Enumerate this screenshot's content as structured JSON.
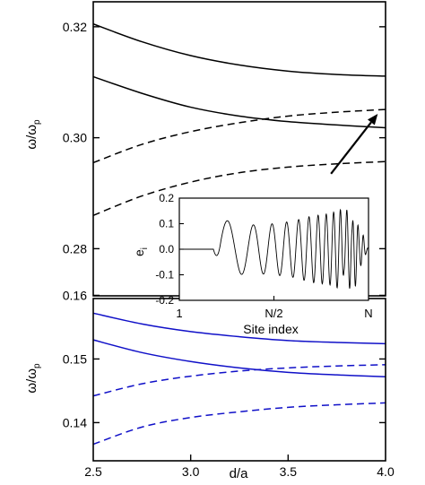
{
  "chart_data": [
    {
      "type": "line",
      "panel": "top",
      "ylabel": "ω/ω",
      "ylabel_sub": "p",
      "xlim": [
        2.5,
        4.0
      ],
      "ylim": [
        0.2715,
        0.3245
      ],
      "yticks": [
        0.28,
        0.3,
        0.32
      ],
      "ytick_labels": [
        "0.28",
        "0.30",
        "0.32"
      ],
      "color": "#000000",
      "series": [
        {
          "style": "solid",
          "x": [
            2.5,
            2.75,
            3.0,
            3.25,
            3.5,
            3.75,
            4.0
          ],
          "y": [
            0.3205,
            0.3173,
            0.3148,
            0.3131,
            0.312,
            0.3114,
            0.3111
          ]
        },
        {
          "style": "solid",
          "x": [
            2.5,
            2.75,
            3.0,
            3.25,
            3.5,
            3.75,
            4.0
          ],
          "y": [
            0.311,
            0.308,
            0.3055,
            0.3039,
            0.3029,
            0.3023,
            0.3018
          ]
        },
        {
          "style": "dashed",
          "x": [
            2.5,
            2.75,
            3.0,
            3.25,
            3.5,
            3.75,
            4.0
          ],
          "y": [
            0.2955,
            0.2988,
            0.3011,
            0.3027,
            0.3039,
            0.3046,
            0.3051
          ]
        },
        {
          "style": "dashed",
          "x": [
            2.5,
            2.75,
            3.0,
            3.25,
            3.5,
            3.75,
            4.0
          ],
          "y": [
            0.286,
            0.2895,
            0.292,
            0.2937,
            0.2947,
            0.2953,
            0.2957
          ]
        }
      ],
      "annotation": {
        "type": "arrow",
        "from": [
          3.72,
          0.2935
        ],
        "to": [
          3.96,
          0.3043
        ]
      }
    },
    {
      "type": "line",
      "panel": "bottom",
      "xlabel": "d/a",
      "ylabel": "ω/ω",
      "ylabel_sub": "p",
      "xlim": [
        2.5,
        4.0
      ],
      "ylim": [
        0.134,
        0.1595
      ],
      "xticks": [
        2.5,
        3.0,
        3.5,
        4.0
      ],
      "xtick_labels": [
        "2.5",
        "3.0",
        "3.5",
        "4.0"
      ],
      "yticks": [
        0.14,
        0.15,
        0.16
      ],
      "ytick_labels": [
        "0.14",
        "0.15",
        "0.16"
      ],
      "color": "#1010c8",
      "series": [
        {
          "style": "solid",
          "x": [
            2.5,
            2.75,
            3.0,
            3.25,
            3.5,
            3.75,
            4.0
          ],
          "y": [
            0.1572,
            0.1555,
            0.1543,
            0.1535,
            0.1529,
            0.1526,
            0.1524
          ]
        },
        {
          "style": "solid",
          "x": [
            2.5,
            2.75,
            3.0,
            3.25,
            3.5,
            3.75,
            4.0
          ],
          "y": [
            0.153,
            0.151,
            0.1496,
            0.1486,
            0.1479,
            0.1475,
            0.1472
          ]
        },
        {
          "style": "dashed",
          "x": [
            2.5,
            2.75,
            3.0,
            3.25,
            3.5,
            3.75,
            4.0
          ],
          "y": [
            0.1442,
            0.1461,
            0.1473,
            0.1481,
            0.1486,
            0.1489,
            0.1491
          ]
        },
        {
          "style": "dashed",
          "x": [
            2.5,
            2.75,
            3.0,
            3.25,
            3.5,
            3.75,
            4.0
          ],
          "y": [
            0.1366,
            0.1393,
            0.1408,
            0.1417,
            0.1424,
            0.1428,
            0.1431
          ]
        }
      ]
    },
    {
      "type": "line",
      "panel": "inset",
      "xlabel": "Site index",
      "ylabel": "e",
      "ylabel_sub": "i",
      "ylim": [
        -0.2,
        0.2
      ],
      "yticks": [
        -0.2,
        -0.1,
        0.0,
        0.1,
        0.2
      ],
      "ytick_labels": [
        "-0.2",
        "-0.1",
        "0.0",
        "0.1",
        "0.2"
      ],
      "xtick_labels": [
        "1",
        "N/2",
        "N"
      ],
      "color": "#000000",
      "envelope": {
        "site_fraction": [
          0.0,
          0.18,
          0.22,
          0.3,
          0.4,
          0.5,
          0.6,
          0.7,
          0.8,
          0.86,
          0.92,
          0.96,
          1.0
        ],
        "amplitude": [
          0.0,
          0.0,
          0.12,
          0.1,
          0.095,
          0.1,
          0.11,
          0.13,
          0.14,
          0.16,
          0.17,
          0.08,
          0.0
        ]
      }
    }
  ]
}
